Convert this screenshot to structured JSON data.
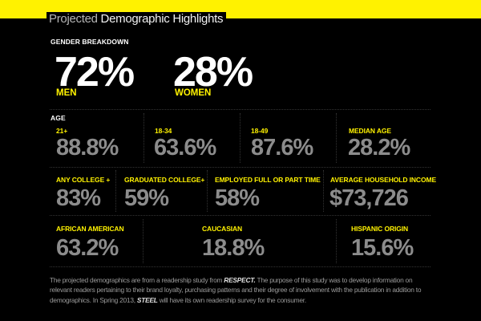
{
  "colors": {
    "accent": "#fff200",
    "value_gray": "#8c8c8c",
    "background": "#000000"
  },
  "title": {
    "light": "Projected",
    "bold": "Demographic Highlights"
  },
  "gender": {
    "heading": "GENDER BREAKDOWN",
    "men": {
      "value": "72%",
      "label": "MEN"
    },
    "women": {
      "value": "28%",
      "label": "WOMEN"
    }
  },
  "age": {
    "heading": "AGE",
    "items": [
      {
        "label": "21+",
        "value": "88.8%"
      },
      {
        "label": "18-34",
        "value": "63.6%"
      },
      {
        "label": "18-49",
        "value": "87.6%"
      },
      {
        "label": "MEDIAN AGE",
        "value": "28.2%"
      }
    ]
  },
  "education": {
    "items": [
      {
        "label": "ANY COLLEGE +",
        "value": "83%"
      },
      {
        "label": "GRADUATED COLLEGE+",
        "value": "59%"
      },
      {
        "label": "EMPLOYED FULL OR PART TIME",
        "value": "58%"
      },
      {
        "label": "AVERAGE HOUSEHOLD INCOME",
        "value": "$73,726"
      }
    ]
  },
  "ethnicity": {
    "items": [
      {
        "label": "AFRICAN AMERICAN",
        "value": "63.2%"
      },
      {
        "label": "CAUCASIAN",
        "value": "18.8%"
      },
      {
        "label": "HISPANIC ORIGIN",
        "value": "15.6%"
      }
    ]
  },
  "footnote": {
    "p1": "The projected demographics are from a readership study from ",
    "em1": "RESPECT.",
    "p2": " The purpose of this study was to develop information on relevant readers pertaining to their brand loyalty, purchasing patterns and their degree of involvement with the publication in addition to demographics. In Spring 2013, ",
    "em2": "STEEL",
    "p3": " will have its own readership survey for the consumer."
  }
}
